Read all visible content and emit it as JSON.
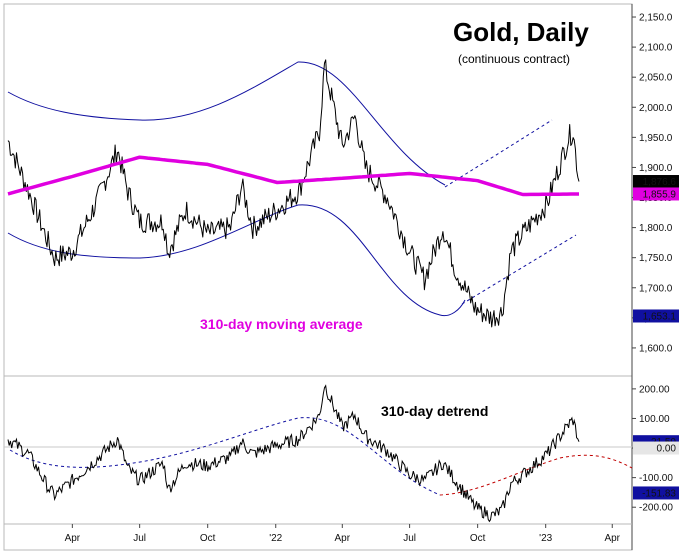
{
  "chart_data": [
    {
      "type": "line",
      "title": "Gold, Daily",
      "subtitle": "(continuous contract)",
      "annotation": "310-day moving average",
      "x_tick_labels": [
        "Apr",
        "Jul",
        "Oct",
        "'22",
        "Apr",
        "Jul",
        "Oct",
        "'23",
        "Apr"
      ],
      "y_tick_labels": [
        "2,150.0",
        "2,100.0",
        "2,050.0",
        "2,000.0",
        "1,950.0",
        "1,900.0",
        "1,850.0",
        "1,800.0",
        "1,750.0",
        "1,700.0",
        "1,650.0",
        "1,600.0"
      ],
      "ylim": [
        1560,
        2165
      ],
      "price_badges": [
        {
          "text": "1,876.6",
          "value": 1876.6,
          "color": "#000000"
        },
        {
          "text": "1,855.9",
          "value": 1855.9,
          "color": "#e000e0"
        },
        {
          "text": "1,653.1",
          "value": 1653.1,
          "color": "#1010a0"
        }
      ],
      "series": [
        {
          "name": "Gold",
          "color": "#000000",
          "x": [
            "2021-01-04",
            "2021-02-01",
            "2021-03-01",
            "2021-03-08",
            "2021-04-01",
            "2021-05-03",
            "2021-06-01",
            "2021-06-15",
            "2021-07-01",
            "2021-08-02",
            "2021-08-09",
            "2021-09-01",
            "2021-10-01",
            "2021-11-01",
            "2021-11-16",
            "2021-12-01",
            "2022-01-03",
            "2022-02-01",
            "2022-03-01",
            "2022-03-08",
            "2022-04-01",
            "2022-04-18",
            "2022-05-02",
            "2022-06-01",
            "2022-07-01",
            "2022-07-21",
            "2022-08-15",
            "2022-09-01",
            "2022-09-28",
            "2022-10-20",
            "2022-11-03",
            "2022-11-15",
            "2022-12-01",
            "2023-01-03",
            "2023-02-01",
            "2023-02-07",
            "2023-02-15"
          ],
          "values": [
            1945,
            1860,
            1770,
            1750,
            1760,
            1840,
            1930,
            1860,
            1810,
            1810,
            1760,
            1830,
            1790,
            1800,
            1870,
            1800,
            1830,
            1860,
            1960,
            2070,
            1935,
            1985,
            1900,
            1850,
            1760,
            1715,
            1800,
            1730,
            1665,
            1650,
            1660,
            1760,
            1790,
            1840,
            1950,
            1960,
            1876.6
          ]
        },
        {
          "name": "310-day moving average",
          "color": "#e000e0",
          "x": [
            "2021-01-04",
            "2021-04-01",
            "2021-07-01",
            "2021-10-01",
            "2022-01-03",
            "2022-04-01",
            "2022-07-01",
            "2022-10-01",
            "2022-12-01",
            "2023-02-15"
          ],
          "values": [
            1856,
            1885,
            1917,
            1905,
            1875,
            1882,
            1890,
            1878,
            1855,
            1855.9
          ]
        }
      ]
    },
    {
      "type": "line",
      "annotation": "310-day detrend",
      "y_tick_labels": [
        "200.00",
        "100.00",
        "0.00",
        "-100.00",
        "-200.00"
      ],
      "ylim": [
        -250,
        230
      ],
      "value_badges": [
        {
          "text": "21.50",
          "value": 21.5,
          "color": "#1010a0"
        },
        {
          "text": "0.00",
          "value": 0,
          "color": "#e6e6e6"
        },
        {
          "text": "-151.83",
          "value": -151.83,
          "color": "#1010a0"
        }
      ],
      "series": [
        {
          "name": "310-day detrend",
          "color": "#000000",
          "x": [
            "2021-01-04",
            "2021-02-01",
            "2021-03-01",
            "2021-03-08",
            "2021-04-01",
            "2021-05-03",
            "2021-06-01",
            "2021-06-15",
            "2021-07-01",
            "2021-08-02",
            "2021-08-09",
            "2021-09-01",
            "2021-10-01",
            "2021-11-01",
            "2021-11-16",
            "2021-12-01",
            "2022-01-03",
            "2022-02-01",
            "2022-03-01",
            "2022-03-08",
            "2022-04-01",
            "2022-04-18",
            "2022-05-02",
            "2022-06-01",
            "2022-07-01",
            "2022-07-21",
            "2022-08-15",
            "2022-09-01",
            "2022-09-28",
            "2022-10-20",
            "2022-11-03",
            "2022-11-15",
            "2022-12-01",
            "2023-01-03",
            "2023-02-01",
            "2023-02-07",
            "2023-02-15"
          ],
          "values": [
            30,
            -20,
            -140,
            -160,
            -110,
            -40,
            30,
            -70,
            -110,
            -50,
            -140,
            -50,
            -60,
            -30,
            20,
            -20,
            10,
            30,
            110,
            215,
            70,
            110,
            40,
            -10,
            -90,
            -110,
            -50,
            -110,
            -200,
            -230,
            -210,
            -120,
            -90,
            -20,
            80,
            95,
            21.5
          ]
        }
      ]
    }
  ]
}
